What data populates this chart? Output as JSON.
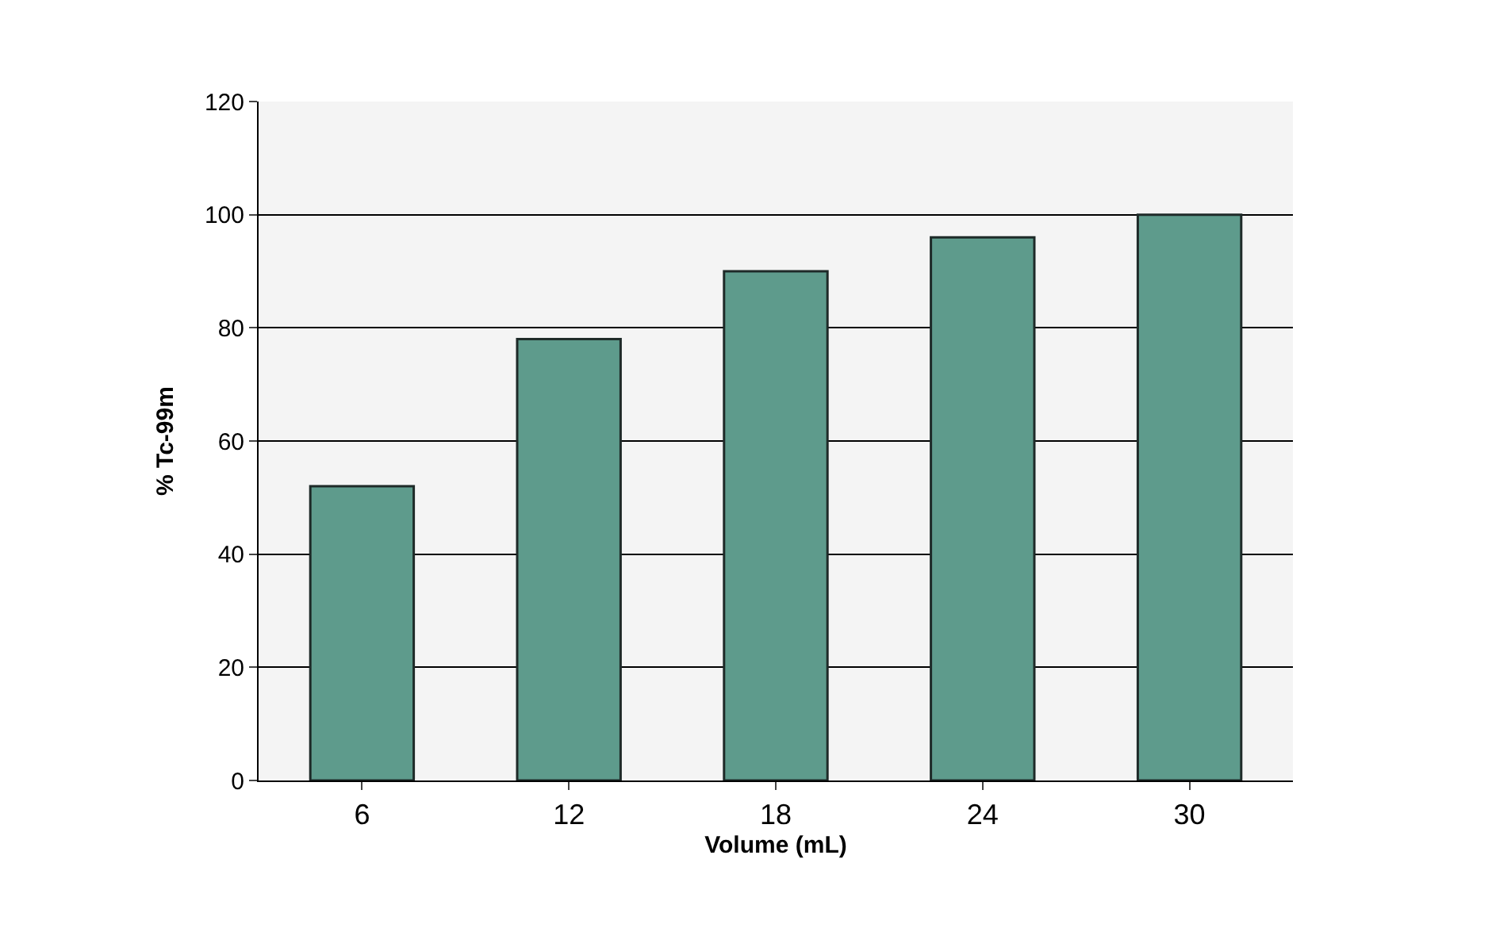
{
  "chart_data": {
    "type": "bar",
    "xlabel": "Volume (mL)",
    "ylabel": "% Tc-99m",
    "categories": [
      "6",
      "12",
      "18",
      "24",
      "30"
    ],
    "values": [
      52,
      78,
      90,
      96,
      100
    ],
    "color": "#5e9b8c",
    "ylim": [
      0,
      120
    ],
    "yticks": [
      0,
      20,
      40,
      60,
      80,
      100,
      120
    ],
    "grid": "y",
    "legend": false
  }
}
